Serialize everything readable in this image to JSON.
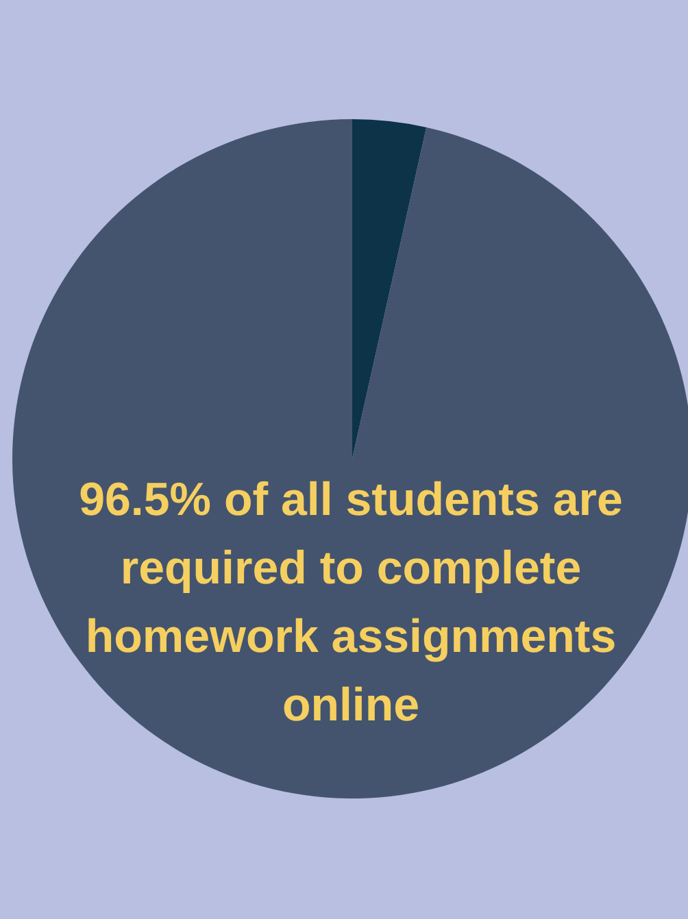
{
  "chart_data": {
    "type": "pie",
    "categories": [
      null,
      null
    ],
    "values": [
      3.5,
      96.5
    ],
    "colors": [
      "#0d3349",
      "#44546f"
    ],
    "annotations": [
      "96.5% of all students are required to complete homework assignments online"
    ]
  }
}
